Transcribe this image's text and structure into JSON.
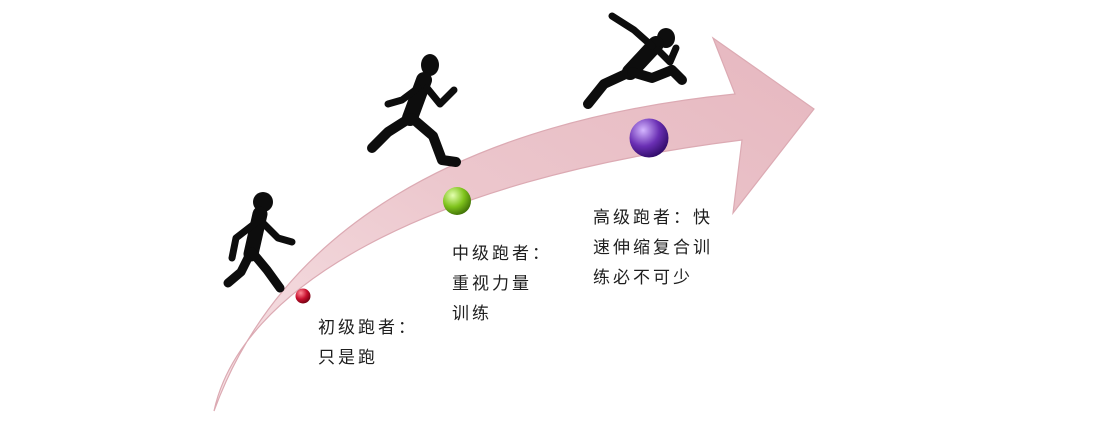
{
  "diagram": {
    "colors": {
      "arrow_fill": "#ecc7cd",
      "arrow_edge": "#dcaab3",
      "silhouette": "#0d0d0d",
      "dot_beginner": "#c8102e",
      "dot_intermediate": "#7fc31c",
      "dot_advanced": "#6a2fb4"
    },
    "stages": [
      {
        "level": "beginner",
        "icon": "walking-person-icon",
        "text": "初级跑者：\n只是跑"
      },
      {
        "level": "intermediate",
        "icon": "running-person-icon",
        "text": "中级跑者：\n重视力量\n训练"
      },
      {
        "level": "advanced",
        "icon": "sprinting-person-icon",
        "text": "高级跑者：快\n速伸缩复合训\n练必不可少"
      }
    ]
  }
}
